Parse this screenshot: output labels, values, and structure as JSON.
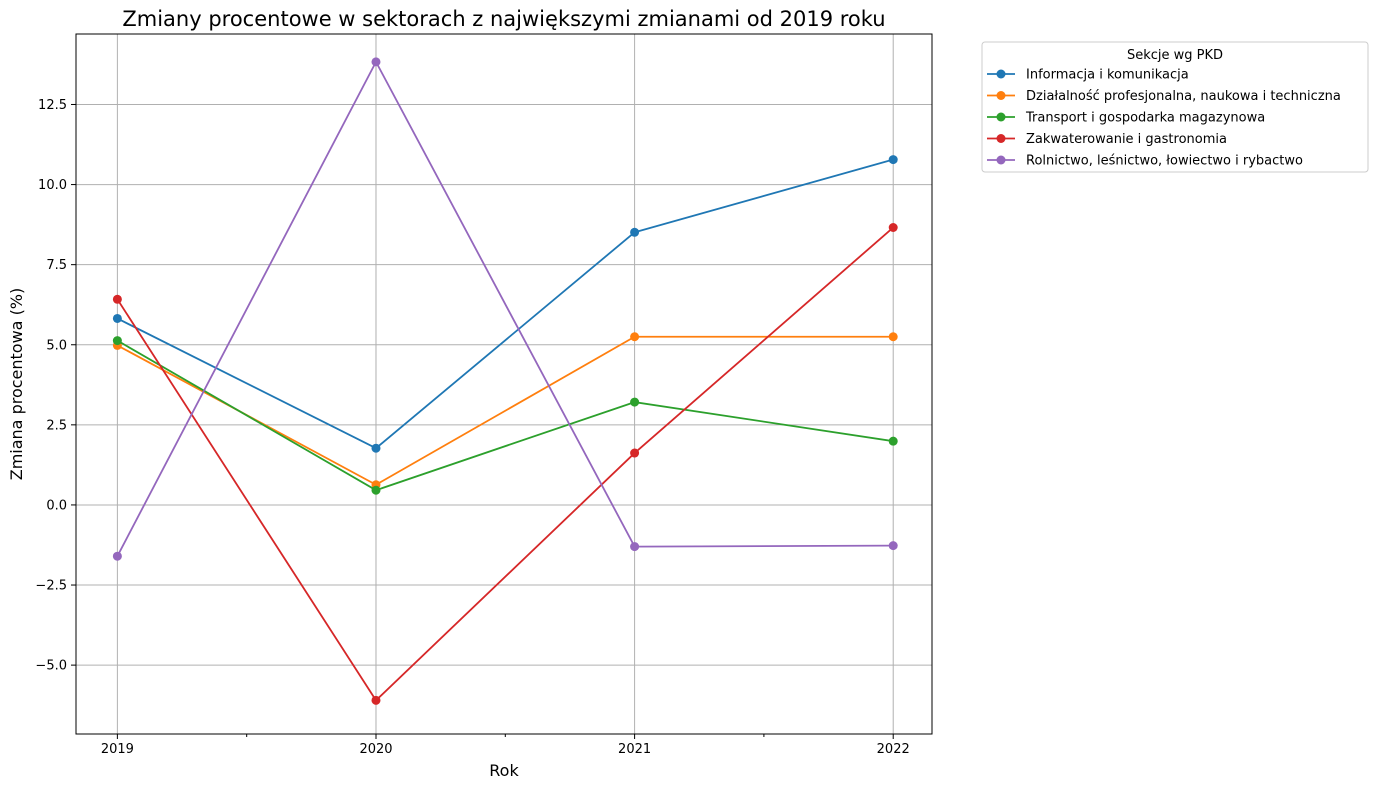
{
  "chart_data": {
    "type": "line",
    "title": "Zmiany procentowe w sektorach z największymi zmianami od 2019 roku",
    "xlabel": "Rok",
    "ylabel": "Zmiana procentowa (%)",
    "x": [
      2019,
      2020,
      2021,
      2022
    ],
    "x_tick_labels": [
      "2019",
      "2020",
      "2021",
      "2022"
    ],
    "xlim": [
      2018.84,
      2022.15
    ],
    "ylim": [
      -7.15,
      14.7
    ],
    "y_ticks": [
      -5.0,
      -2.5,
      0.0,
      2.5,
      5.0,
      7.5,
      10.0,
      12.5
    ],
    "y_tick_labels": [
      "−5.0",
      "−2.5",
      "0.0",
      "2.5",
      "5.0",
      "7.5",
      "10.0",
      "12.5"
    ],
    "grid": true,
    "legend_title": "Sekcje wg PKD",
    "legend_position": "outside-top-right",
    "series": [
      {
        "name": "Informacja i komunikacja",
        "color": "#1f77b4",
        "values": [
          5.82,
          1.77,
          8.51,
          10.78
        ]
      },
      {
        "name": "Działalność profesjonalna, naukowa i techniczna",
        "color": "#ff7f0e",
        "values": [
          4.98,
          0.63,
          5.25,
          5.25
        ]
      },
      {
        "name": "Transport i gospodarka magazynowa",
        "color": "#2ca02c",
        "values": [
          5.13,
          0.46,
          3.21,
          1.99
        ]
      },
      {
        "name": "Zakwaterowanie i gastronomia",
        "color": "#d62728",
        "values": [
          6.42,
          -6.1,
          1.62,
          8.66
        ]
      },
      {
        "name": "Rolnictwo, leśnictwo, łowiectwo i rybactwo",
        "color": "#9467bd",
        "values": [
          -1.6,
          13.83,
          -1.3,
          -1.27
        ]
      }
    ]
  }
}
